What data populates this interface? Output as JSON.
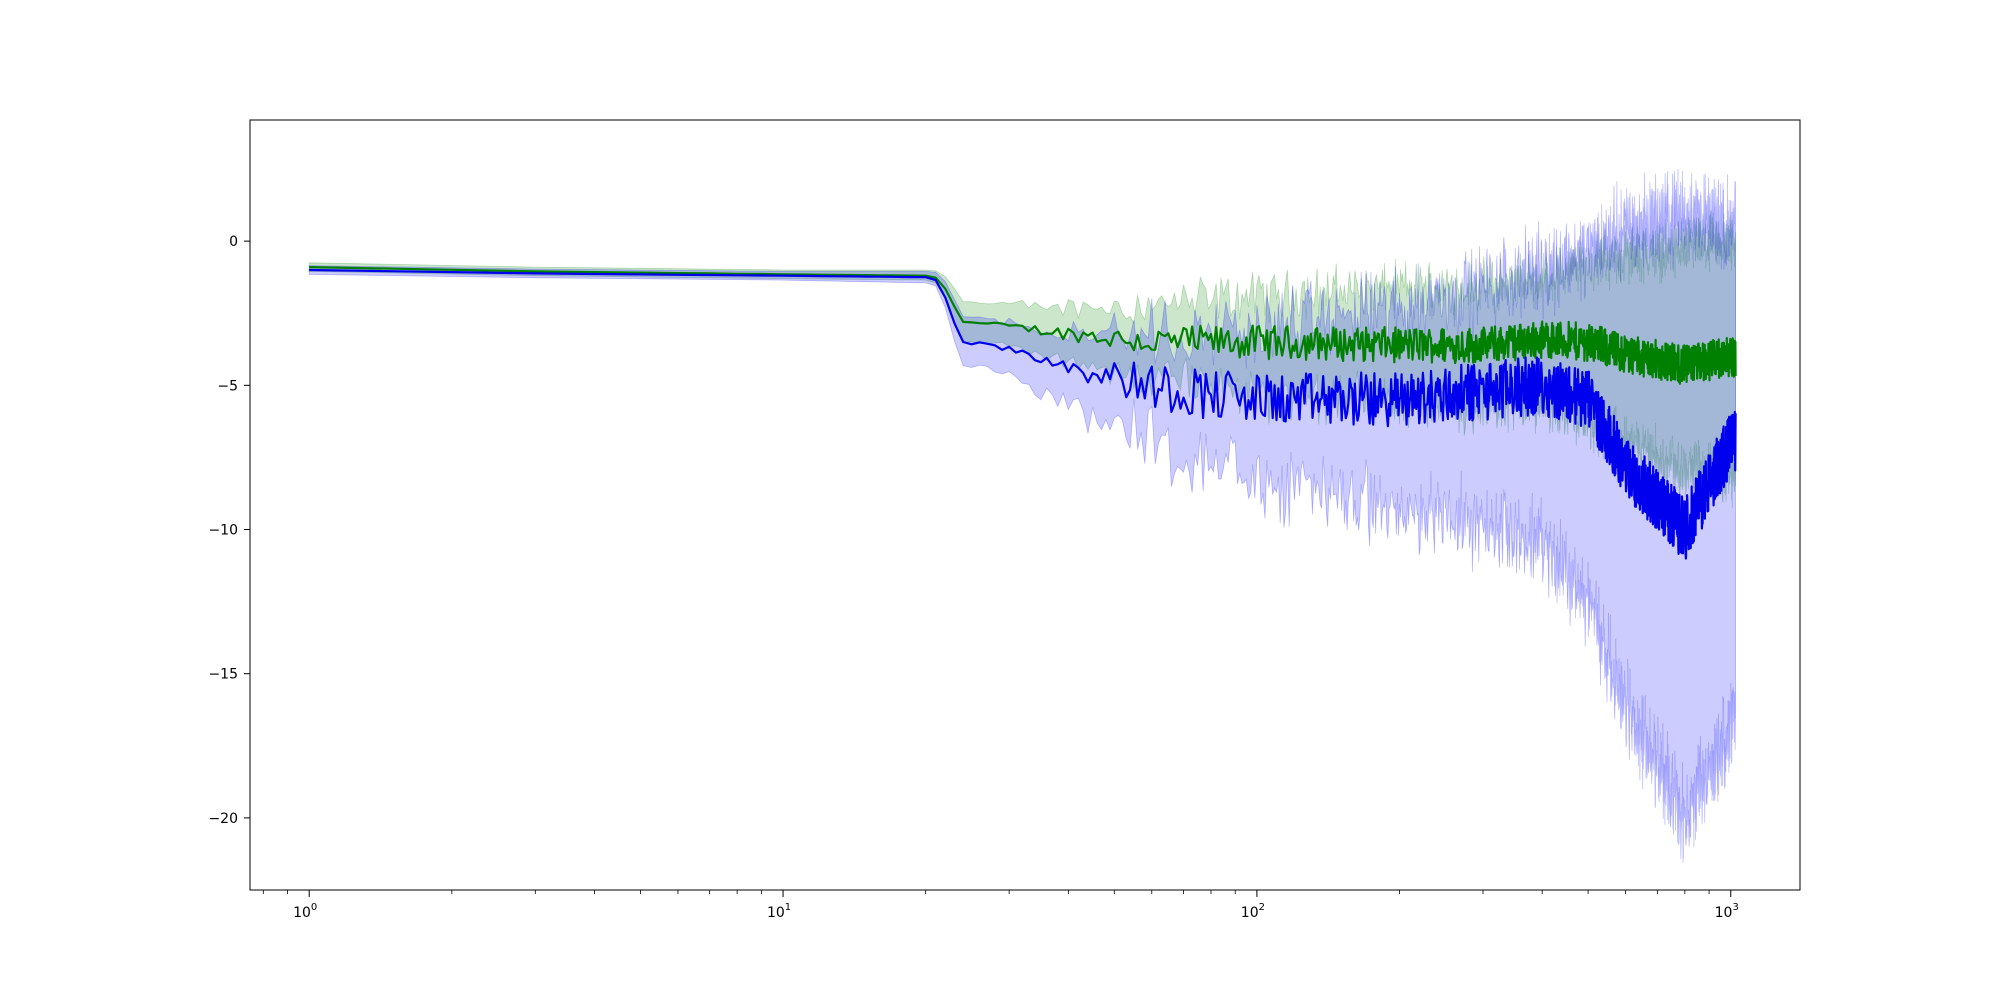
{
  "chart_data": {
    "type": "line",
    "title": "",
    "xlabel": "",
    "ylabel": "",
    "xscale": "log",
    "xlim": [
      0.75,
      1400
    ],
    "ylim": [
      -22.5,
      4.2
    ],
    "grid": false,
    "legend": "none",
    "x_ticks": [
      {
        "base": "10",
        "exp": "0",
        "value": 1
      },
      {
        "base": "10",
        "exp": "1",
        "value": 10
      },
      {
        "base": "10",
        "exp": "2",
        "value": 100
      },
      {
        "base": "10",
        "exp": "3",
        "value": 1000
      }
    ],
    "y_ticks": [
      {
        "label": "0",
        "value": 0
      },
      {
        "label": "−5",
        "value": -5
      },
      {
        "label": "−10",
        "value": -10
      },
      {
        "label": "−15",
        "value": -15
      },
      {
        "label": "−20",
        "value": -20
      }
    ],
    "series": [
      {
        "color": "#008000",
        "band_color": "#008000",
        "band_opacity": 0.2,
        "anchors": [
          [
            1,
            -0.9,
            -0.75,
            -1.05
          ],
          [
            3,
            -1.05,
            -0.9,
            -1.2
          ],
          [
            10,
            -1.15,
            -1.0,
            -1.3
          ],
          [
            20,
            -1.2,
            -1.0,
            -1.35
          ],
          [
            21.5,
            -1.3,
            -1.05,
            -1.5
          ],
          [
            22.5,
            -2.0,
            -1.4,
            -2.5
          ],
          [
            24,
            -2.8,
            -2.1,
            -3.5
          ],
          [
            28,
            -2.9,
            -2.2,
            -3.6
          ],
          [
            40,
            -3.2,
            -2.3,
            -4.1
          ],
          [
            60,
            -3.5,
            -2.2,
            -4.7
          ],
          [
            100,
            -3.5,
            -1.9,
            -5.3
          ],
          [
            200,
            -3.6,
            -1.6,
            -5.6
          ],
          [
            300,
            -3.6,
            -1.6,
            -5.8
          ],
          [
            400,
            -3.4,
            -1.3,
            -5.6
          ],
          [
            500,
            -3.5,
            -0.8,
            -6.3
          ],
          [
            600,
            -3.9,
            -0.5,
            -7.0
          ],
          [
            800,
            -4.3,
            -0.2,
            -8.0
          ],
          [
            1000,
            -4.0,
            0.0,
            -8.2
          ]
        ]
      },
      {
        "color": "#0000ee",
        "band_color": "#0000ff",
        "band_opacity": 0.2,
        "anchors": [
          [
            1,
            -1.0,
            -0.85,
            -1.15
          ],
          [
            3,
            -1.12,
            -0.97,
            -1.27
          ],
          [
            10,
            -1.2,
            -1.05,
            -1.35
          ],
          [
            20,
            -1.25,
            -1.05,
            -1.45
          ],
          [
            21.5,
            -1.4,
            -1.1,
            -1.6
          ],
          [
            22.5,
            -2.5,
            -1.7,
            -3.0
          ],
          [
            24,
            -3.5,
            -2.6,
            -4.3
          ],
          [
            30,
            -3.7,
            -2.8,
            -4.6
          ],
          [
            40,
            -4.3,
            -3.1,
            -5.6
          ],
          [
            60,
            -5.0,
            -3.3,
            -6.8
          ],
          [
            100,
            -5.5,
            -3.0,
            -8.3
          ],
          [
            200,
            -5.5,
            -2.3,
            -9.3
          ],
          [
            300,
            -5.2,
            -1.6,
            -9.9
          ],
          [
            400,
            -5.0,
            -1.0,
            -10.5
          ],
          [
            500,
            -5.5,
            -0.3,
            -12.5
          ],
          [
            600,
            -7.8,
            0.5,
            -16.0
          ],
          [
            800,
            -10.0,
            1.0,
            -20.0
          ],
          [
            1000,
            -7.0,
            0.5,
            -17.0
          ]
        ]
      }
    ]
  }
}
